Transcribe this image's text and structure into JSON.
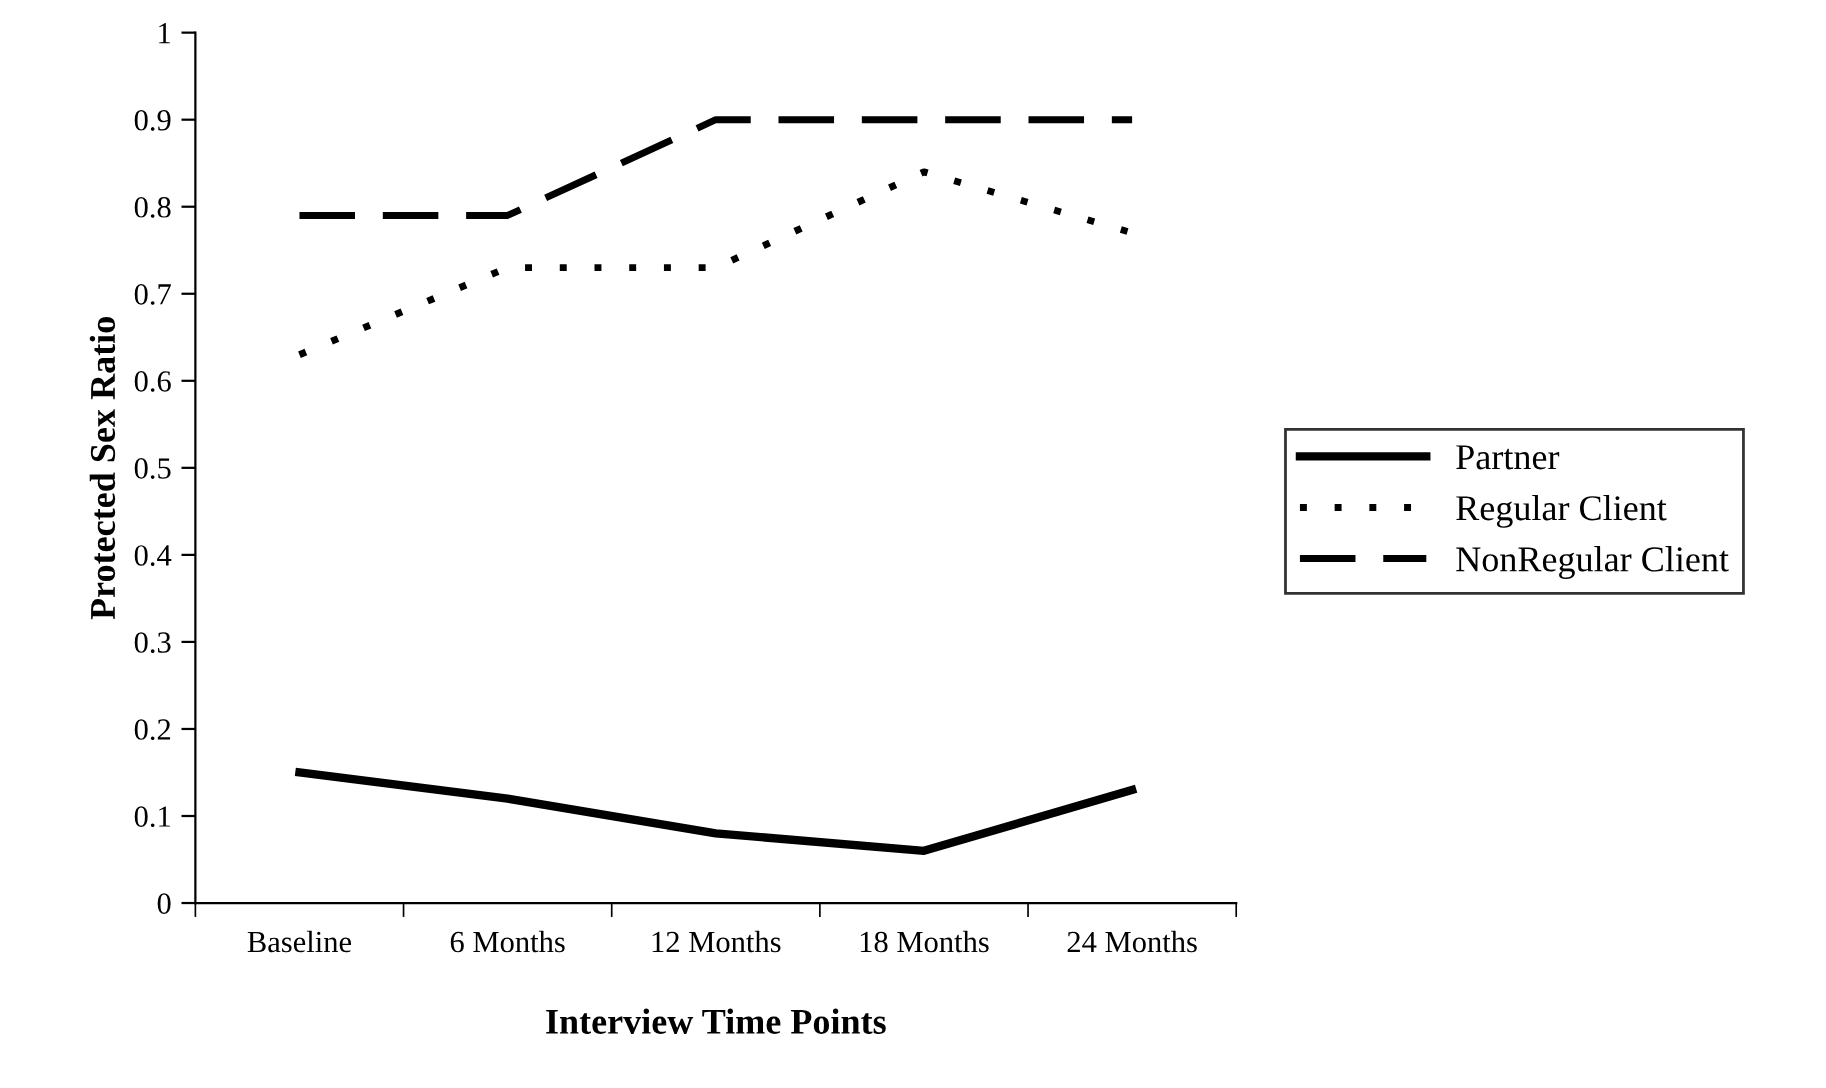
{
  "chart_data": {
    "type": "line",
    "xlabel": "Interview Time Points",
    "ylabel": "Protected Sex Ratio",
    "categories": [
      "Baseline",
      "6 Months",
      "12 Months",
      "18 Months",
      "24 Months"
    ],
    "ylim": [
      0,
      1
    ],
    "yticks": [
      0,
      0.1,
      0.2,
      0.3,
      0.4,
      0.5,
      0.6,
      0.7,
      0.8,
      0.9,
      1
    ],
    "grid": false,
    "legend": "right",
    "marker": "none",
    "series": [
      {
        "name": "Partner",
        "color": "#000000",
        "line_style": "solid",
        "values": [
          0.15,
          0.12,
          0.08,
          0.06,
          0.13
        ]
      },
      {
        "name": "Regular Client",
        "color": "#000000",
        "line_style": "dotted",
        "values": [
          0.63,
          0.73,
          0.73,
          0.84,
          0.77
        ]
      },
      {
        "name": "NonRegular Client",
        "color": "#000000",
        "line_style": "dashed",
        "values": [
          0.79,
          0.79,
          0.9,
          0.9,
          0.9
        ]
      }
    ]
  }
}
